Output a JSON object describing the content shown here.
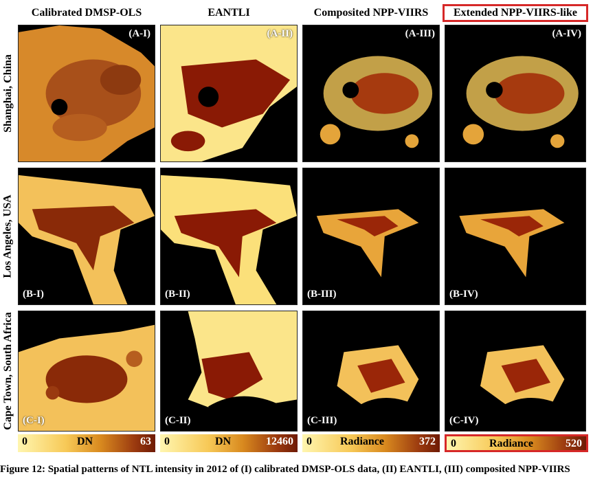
{
  "columns": [
    {
      "title": "Calibrated DMSP-OLS",
      "highlighted": false
    },
    {
      "title": "EANTLI",
      "highlighted": false
    },
    {
      "title": "Composited NPP-VIIRS",
      "highlighted": false
    },
    {
      "title": "Extended NPP-VIIRS-like",
      "highlighted": true
    }
  ],
  "rows": [
    {
      "label": "Shanghai, China",
      "panels": [
        "(A-I)",
        "(A-II)",
        "(A-III)",
        "(A-IV)"
      ]
    },
    {
      "label": "Los Angeles, USA",
      "panels": [
        "(B-I)",
        "(B-II)",
        "(B-III)",
        "(B-IV)"
      ]
    },
    {
      "label": "Cape Town, South Africa",
      "panels": [
        "(C-I)",
        "(C-II)",
        "(C-III)",
        "(C-IV)"
      ]
    }
  ],
  "colorbars": [
    {
      "min": "0",
      "label": "DN",
      "max": "63",
      "highlighted": false
    },
    {
      "min": "0",
      "label": "DN",
      "max": "12460",
      "highlighted": false
    },
    {
      "min": "0",
      "label": "Radiance",
      "max": "372",
      "highlighted": false
    },
    {
      "min": "0",
      "label": "Radiance",
      "max": "520",
      "highlighted": true
    }
  ],
  "caption": "Figure 12: Spatial patterns of NTL intensity in 2012 of (I) calibrated DMSP-OLS data, (II) EANTLI, (III) composited NPP-VIIRS",
  "colors": {
    "highlight": "#d62828",
    "background": "#000000",
    "light": "#fff3a8",
    "mid": "#f2b640",
    "dark": "#7a1a05"
  }
}
